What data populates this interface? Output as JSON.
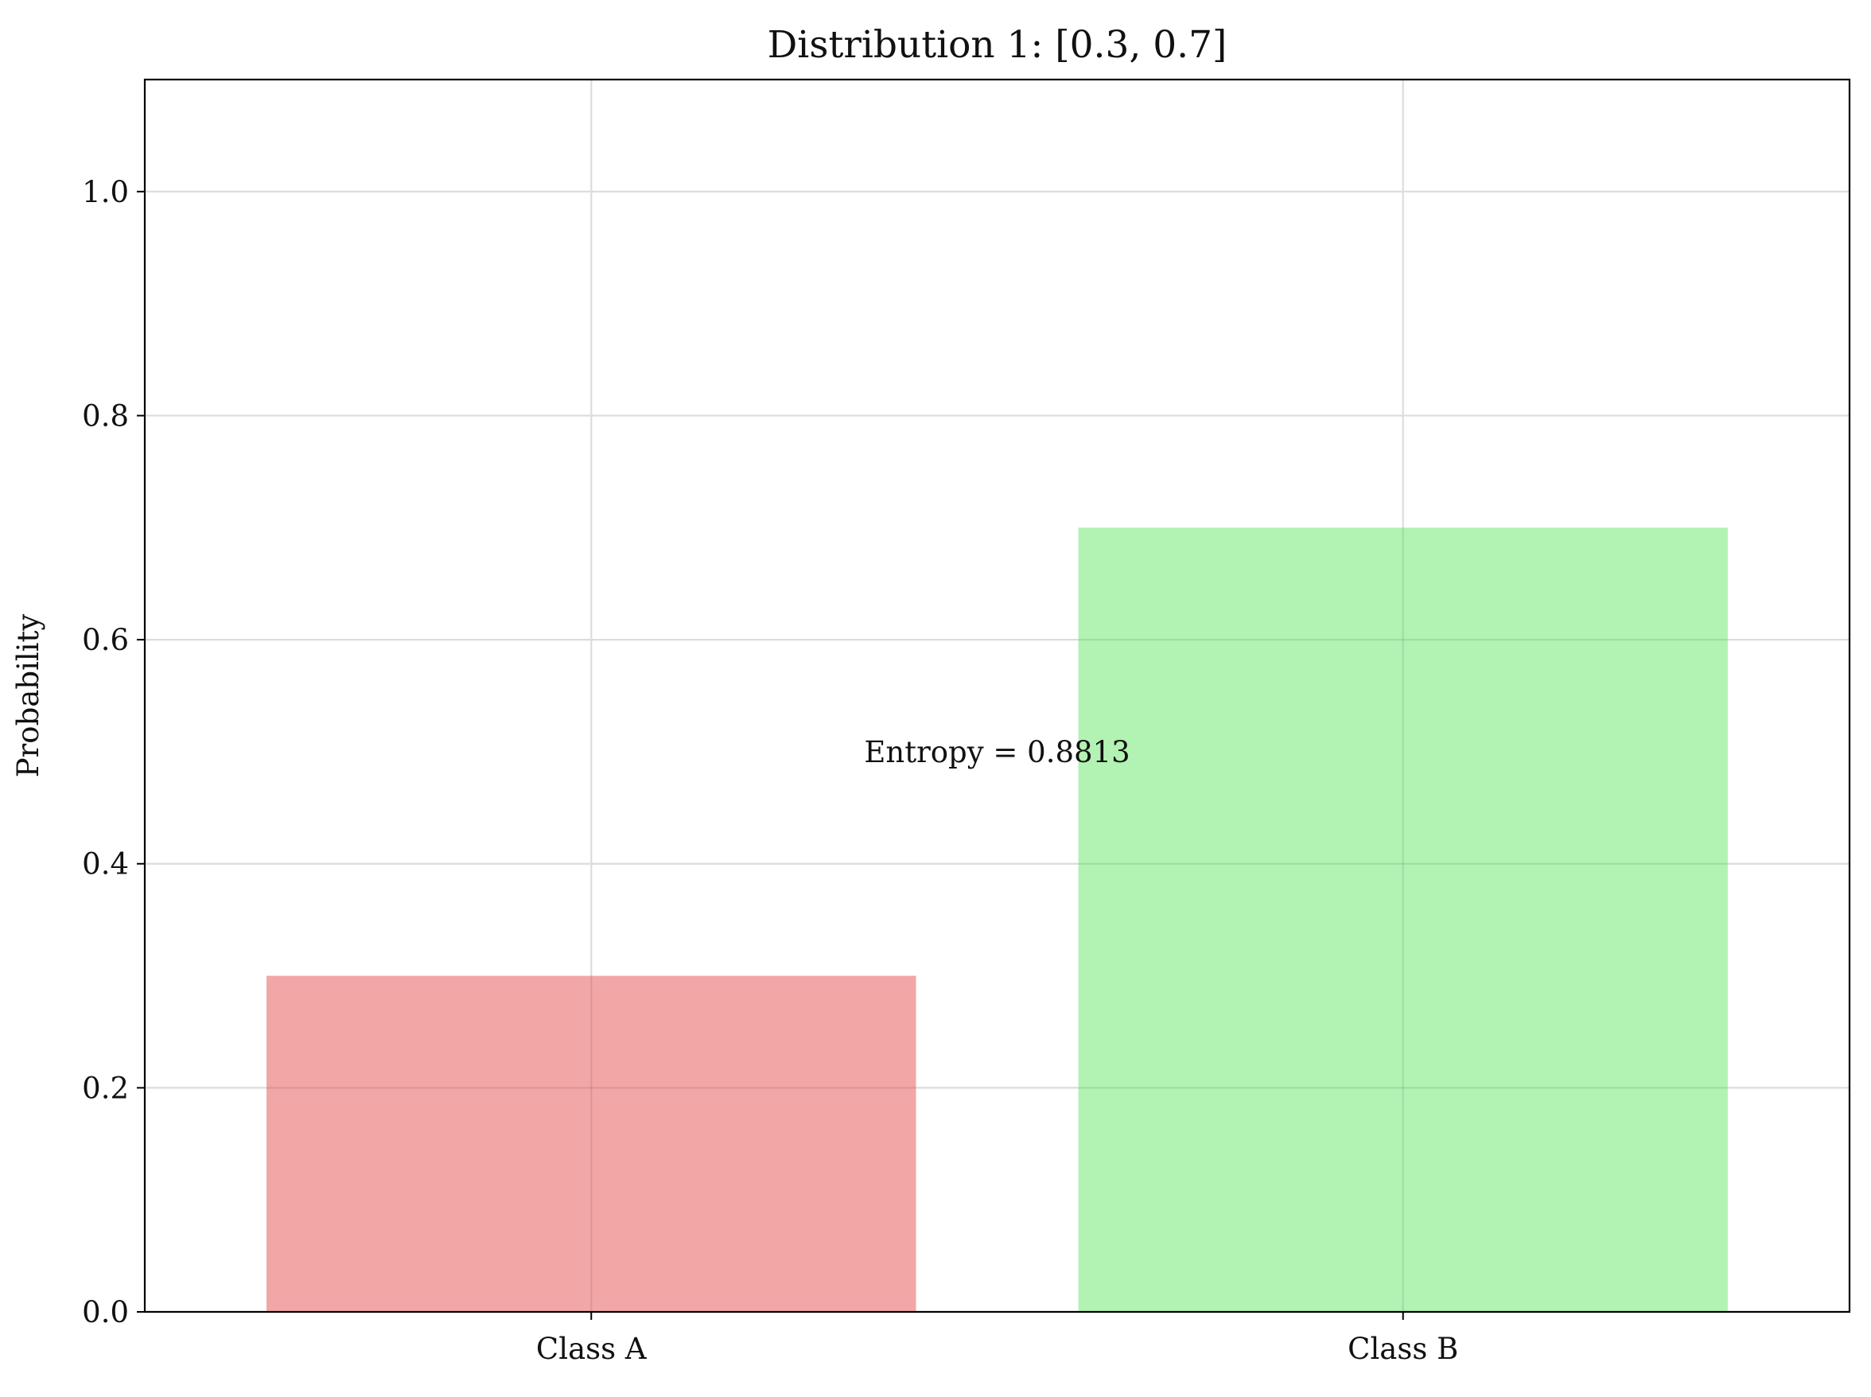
{
  "chart_data": {
    "type": "bar",
    "title": "Distribution 1: [0.3, 0.7]",
    "xlabel": "",
    "ylabel": "Probability",
    "categories": [
      "Class A",
      "Class B"
    ],
    "values": [
      0.3,
      0.7
    ],
    "colors": [
      "#f2a6a6",
      "#b2f2b2"
    ],
    "ylim": [
      0,
      1.1
    ],
    "yticks": [
      0.0,
      0.2,
      0.4,
      0.6,
      0.8,
      1.0
    ],
    "ytick_labels": [
      "0.0",
      "0.2",
      "0.4",
      "0.6",
      "0.8",
      "1.0"
    ],
    "grid": true,
    "annotation": {
      "text": "Entropy = 0.8813",
      "x": 0.5,
      "y": 0.5
    }
  }
}
